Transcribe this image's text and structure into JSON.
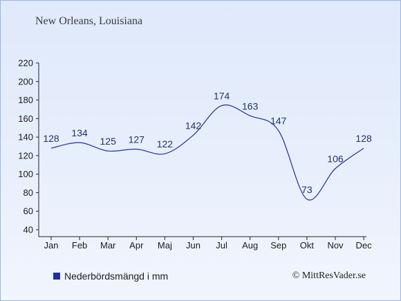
{
  "chart_data": {
    "type": "line",
    "title": "New Orleans, Louisiana",
    "xlabel": "",
    "ylabel": "",
    "categories": [
      "Jan",
      "Feb",
      "Mar",
      "Apr",
      "Maj",
      "Jun",
      "Jul",
      "Aug",
      "Sep",
      "Okt",
      "Nov",
      "Dec"
    ],
    "series": [
      {
        "name": "Nederbördsmängd i mm",
        "values": [
          128,
          134,
          125,
          127,
          122,
          142,
          174,
          163,
          147,
          73,
          106,
          128
        ]
      }
    ],
    "yticks": [
      40,
      60,
      80,
      100,
      120,
      140,
      160,
      180,
      200,
      220
    ],
    "ylim": [
      40,
      220
    ],
    "grid": false,
    "legend": "bottom-left",
    "line_color": "#1f2fa3"
  },
  "credit": "© MittResVader.se"
}
